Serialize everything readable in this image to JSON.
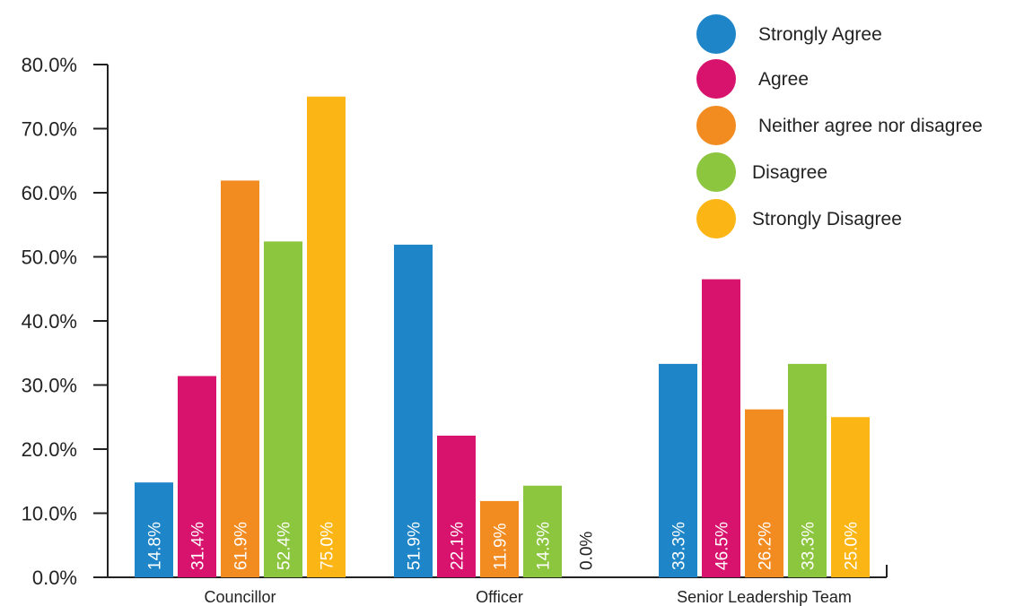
{
  "chart_data": {
    "type": "bar",
    "categories": [
      "Councillor",
      "Officer",
      "Senior Leadership Team"
    ],
    "series": [
      {
        "name": "Strongly Agree",
        "color": "#1e86c8",
        "values": [
          14.8,
          51.9,
          33.3
        ],
        "labels": [
          "14.8%",
          "51.9%",
          "33.3%"
        ]
      },
      {
        "name": "Agree",
        "color": "#d8136e",
        "values": [
          31.4,
          22.1,
          46.5
        ],
        "labels": [
          "31.4%",
          "22.1%",
          "46.5%"
        ]
      },
      {
        "name": "Neither agree nor disagree",
        "color": "#f28b20",
        "values": [
          61.9,
          11.9,
          26.2
        ],
        "labels": [
          "61.9%",
          "11.9%",
          "26.2%"
        ]
      },
      {
        "name": "Disagree",
        "color": "#8cc63f",
        "values": [
          52.4,
          14.3,
          33.3
        ],
        "labels": [
          "52.4%",
          "14.3%",
          "33.3%"
        ]
      },
      {
        "name": "Strongly Disagree",
        "color": "#fbb616",
        "values": [
          75.0,
          0.0,
          25.0
        ],
        "labels": [
          "75.0%",
          "0.0%",
          "25.0%"
        ]
      }
    ],
    "yticks": [
      "0.0%",
      "10.0%",
      "20.0%",
      "30.0%",
      "40.0%",
      "50.0%",
      "60.0%",
      "70.0%",
      "80.0%"
    ],
    "ylim": [
      0,
      80
    ],
    "grid": false,
    "legend_position": "top-right",
    "zero_label_color": "#222222",
    "bar_label_color": "#ffffff"
  }
}
